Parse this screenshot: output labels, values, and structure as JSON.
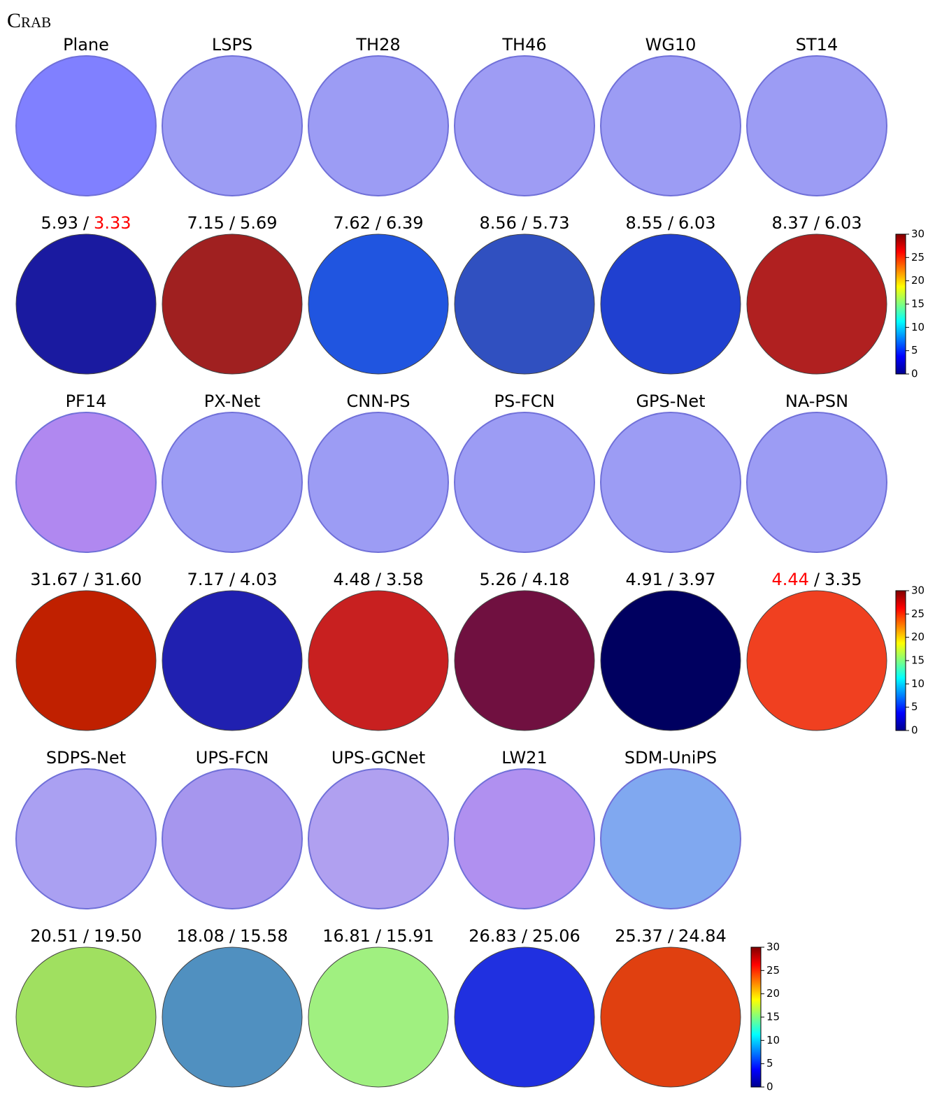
{
  "title": "Crab",
  "separator": "/",
  "groups": [
    {
      "methods": [
        {
          "name": "Plane",
          "mean": "5.93",
          "median": "3.33",
          "median_color": "#ff0000",
          "normal_color": "#8080ff",
          "error_color": "#1a1aa0"
        },
        {
          "name": "LSPS",
          "mean": "7.15",
          "median": "5.69",
          "normal_color": "#9c9cf4",
          "error_color": "#a02020"
        },
        {
          "name": "TH28",
          "mean": "7.62",
          "median": "6.39",
          "normal_color": "#9c9cf4",
          "error_color": "#2055e0"
        },
        {
          "name": "TH46",
          "mean": "8.56",
          "median": "5.73",
          "normal_color": "#9e9cf4",
          "error_color": "#3050c0"
        },
        {
          "name": "WG10",
          "mean": "8.55",
          "median": "6.03",
          "normal_color": "#9c9cf4",
          "error_color": "#2040d0"
        },
        {
          "name": "ST14",
          "mean": "8.37",
          "median": "6.03",
          "normal_color": "#9c9cf4",
          "error_color": "#b02020"
        }
      ],
      "colorbar_ticks": [
        0,
        5,
        10,
        15,
        20,
        25,
        30
      ]
    },
    {
      "methods": [
        {
          "name": "PF14",
          "mean": "31.67",
          "median": "31.60",
          "normal_color": "#b088f0",
          "error_color": "#c02000"
        },
        {
          "name": "PX-Net",
          "mean": "7.17",
          "median": "4.03",
          "normal_color": "#9c9cf4",
          "error_color": "#2020b0"
        },
        {
          "name": "CNN-PS",
          "mean": "4.48",
          "median": "3.58",
          "normal_color": "#9c9cf4",
          "error_color": "#c82020"
        },
        {
          "name": "PS-FCN",
          "mean": "5.26",
          "median": "4.18",
          "normal_color": "#9c9cf4",
          "error_color": "#701040"
        },
        {
          "name": "GPS-Net",
          "mean": "4.91",
          "median": "3.97",
          "normal_color": "#9c9cf4",
          "error_color": "#000060"
        },
        {
          "name": "NA-PSN",
          "mean": "4.44",
          "median": "3.35",
          "mean_color": "#ff0000",
          "normal_color": "#9c9cf4",
          "error_color": "#f04020"
        }
      ],
      "colorbar_ticks": [
        0,
        5,
        10,
        15,
        20,
        25,
        30
      ]
    },
    {
      "methods": [
        {
          "name": "SDPS-Net",
          "mean": "20.51",
          "median": "19.50",
          "normal_color": "#aaa0f2",
          "error_color": "#a0e060"
        },
        {
          "name": "UPS-FCN",
          "mean": "18.08",
          "median": "15.58",
          "normal_color": "#a696ee",
          "error_color": "#5090c0"
        },
        {
          "name": "UPS-GCNet",
          "mean": "16.81",
          "median": "15.91",
          "normal_color": "#b0a0f0",
          "error_color": "#a0f080"
        },
        {
          "name": "LW21",
          "mean": "26.83",
          "median": "25.06",
          "normal_color": "#b090f0",
          "error_color": "#2030e0"
        },
        {
          "name": "SDM-UniPS",
          "mean": "25.37",
          "median": "24.84",
          "normal_color": "#80a8f0",
          "error_color": "#e04010"
        }
      ],
      "colorbar_ticks": [
        0,
        5,
        10,
        15,
        20,
        25,
        30
      ]
    }
  ]
}
